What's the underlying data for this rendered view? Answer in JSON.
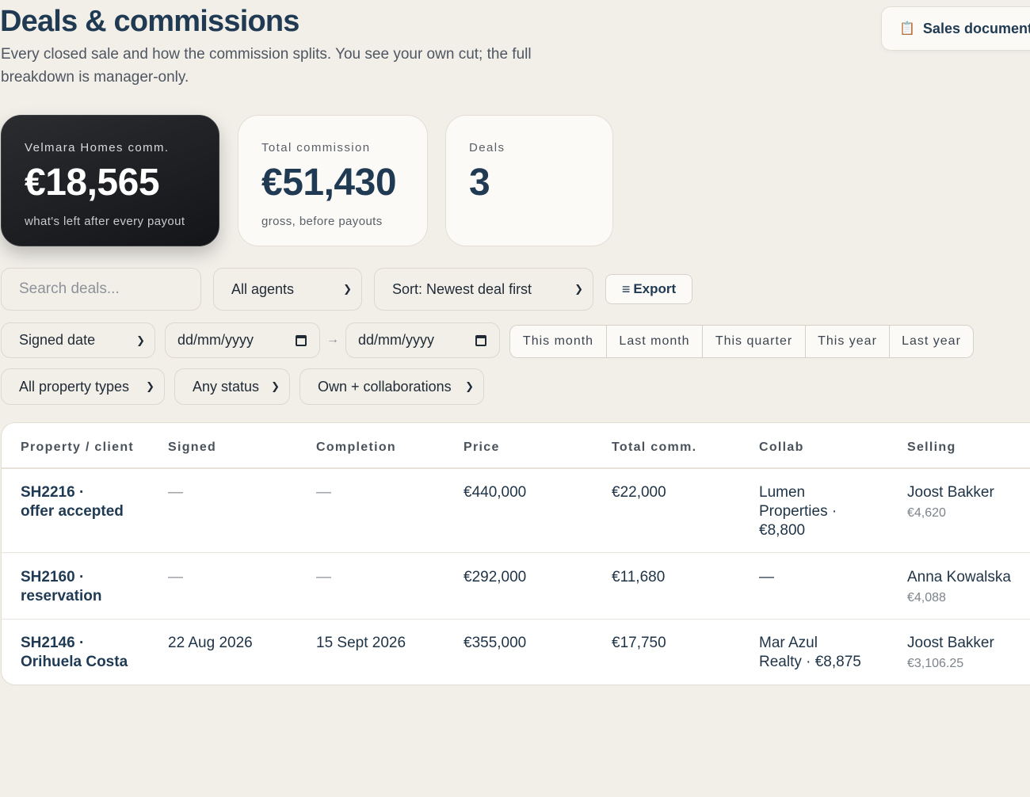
{
  "header": {
    "title": "Deals & commissions",
    "subtitle": "Every closed sale and how the commission splits. You see your own cut; the full breakdown is manager-only.",
    "docs_button": "Sales document"
  },
  "stats": [
    {
      "label": "Velmara Homes comm.",
      "value": "€18,565",
      "note": "what's left after every payout"
    },
    {
      "label": "Total commission",
      "value": "€51,430",
      "note": "gross, before payouts"
    },
    {
      "label": "Deals",
      "value": "3",
      "note": ""
    }
  ],
  "filters": {
    "search_placeholder": "Search deals...",
    "agents": "All agents",
    "sort": "Sort: Newest deal first",
    "export": "Export",
    "date_field": "Signed date",
    "date_from": "dd/mm/yyyy",
    "date_to": "dd/mm/yyyy",
    "date_arrow": "→",
    "ranges": [
      "This month",
      "Last month",
      "This quarter",
      "This year",
      "Last year"
    ],
    "property_types": "All property types",
    "status": "Any status",
    "scope": "Own + collaborations"
  },
  "table": {
    "columns": [
      "Property / client",
      "Signed",
      "Completion",
      "Price",
      "Total comm.",
      "Collab",
      "Selling"
    ],
    "rows": [
      {
        "property": "SH2216 ·\noffer accepted",
        "signed": "—",
        "completion": "—",
        "price": "€440,000",
        "total": "€22,000",
        "collab": "Lumen\nProperties ·\n€8,800",
        "selling_agent": "Joost Bakker",
        "selling_amount": "€4,620"
      },
      {
        "property": "SH2160 ·\nreservation",
        "signed": "—",
        "completion": "—",
        "price": "€292,000",
        "total": "€11,680",
        "collab": "—",
        "selling_agent": "Anna Kowalska",
        "selling_amount": "€4,088"
      },
      {
        "property": "SH2146 ·\nOrihuela Costa",
        "signed": "22 Aug 2026",
        "completion": "15 Sept 2026",
        "price": "€355,000",
        "total": "€17,750",
        "collab": "Mar Azul\nRealty · €8,875",
        "selling_agent": "Joost Bakker",
        "selling_amount": "€3,106.25"
      }
    ]
  }
}
